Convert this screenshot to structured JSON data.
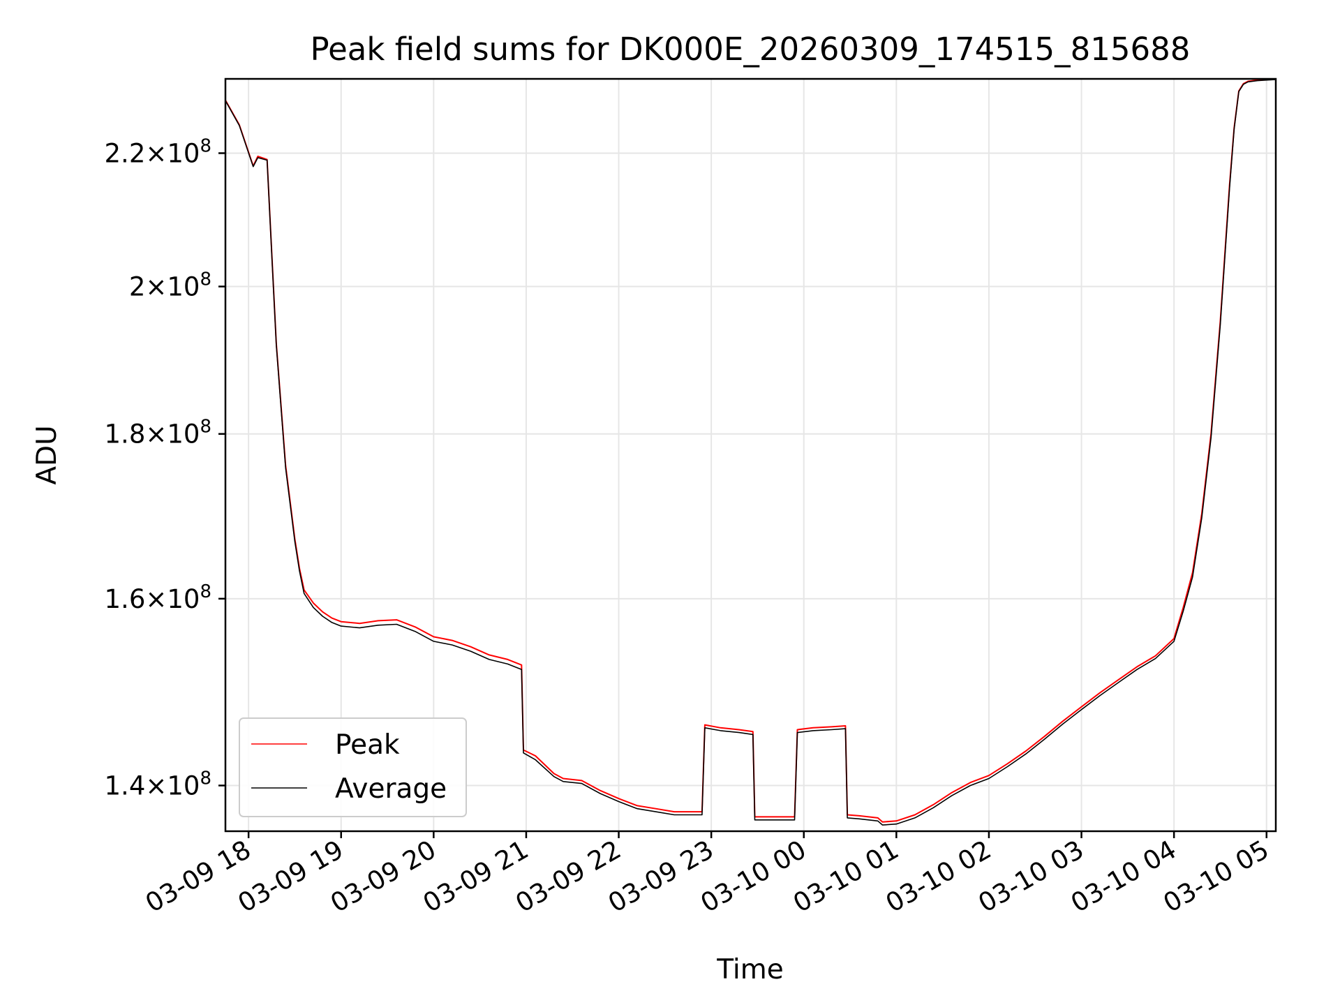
{
  "chart_data": {
    "type": "line",
    "title": "Peak field sums for DK000E_20260309_174515_815688",
    "xlabel": "Time",
    "ylabel": "ADU",
    "yscale": "log",
    "xlim": [
      17.75,
      29.1
    ],
    "ylim": [
      135500000,
      232000000
    ],
    "grid": true,
    "legend_position": "lower-left",
    "x_ticks": [
      {
        "value": 18,
        "label": "03-09 18"
      },
      {
        "value": 19,
        "label": "03-09 19"
      },
      {
        "value": 20,
        "label": "03-09 20"
      },
      {
        "value": 21,
        "label": "03-09 21"
      },
      {
        "value": 22,
        "label": "03-09 22"
      },
      {
        "value": 23,
        "label": "03-09 23"
      },
      {
        "value": 24,
        "label": "03-10 00"
      },
      {
        "value": 25,
        "label": "03-10 01"
      },
      {
        "value": 26,
        "label": "03-10 02"
      },
      {
        "value": 27,
        "label": "03-10 03"
      },
      {
        "value": 28,
        "label": "03-10 04"
      },
      {
        "value": 29,
        "label": "03-10 05"
      }
    ],
    "y_ticks": [
      {
        "value": 140000000,
        "mantissa": "1.4",
        "base": "10",
        "exp": "8"
      },
      {
        "value": 160000000,
        "mantissa": "1.6",
        "base": "10",
        "exp": "8"
      },
      {
        "value": 180000000,
        "mantissa": "1.8",
        "base": "10",
        "exp": "8"
      },
      {
        "value": 200000000,
        "mantissa": "2",
        "base": "10",
        "exp": "8"
      },
      {
        "value": 220000000,
        "mantissa": "2.2",
        "base": "10",
        "exp": "8"
      }
    ],
    "series": [
      {
        "name": "Peak",
        "color": "#ff0000",
        "x": [
          17.75,
          17.9,
          18.05,
          18.1,
          18.2,
          18.25,
          18.3,
          18.4,
          18.5,
          18.55,
          18.6,
          18.7,
          18.8,
          18.9,
          19.0,
          19.2,
          19.4,
          19.6,
          19.8,
          20.0,
          20.2,
          20.4,
          20.6,
          20.8,
          20.95,
          20.97,
          21.1,
          21.3,
          21.4,
          21.6,
          21.8,
          22.0,
          22.2,
          22.4,
          22.6,
          22.9,
          22.93,
          23.1,
          23.3,
          23.45,
          23.47,
          23.6,
          23.8,
          23.9,
          23.93,
          24.1,
          24.3,
          24.45,
          24.47,
          24.6,
          24.8,
          24.85,
          25.0,
          25.2,
          25.4,
          25.6,
          25.8,
          26.0,
          26.2,
          26.4,
          26.6,
          26.8,
          27.0,
          27.2,
          27.4,
          27.6,
          27.8,
          28.0,
          28.1,
          28.2,
          28.3,
          28.4,
          28.5,
          28.6,
          28.65,
          28.7,
          28.75,
          28.8,
          28.9,
          29.1
        ],
        "values": [
          228500000,
          224500000,
          218000000,
          219500000,
          219000000,
          205000000,
          192000000,
          176000000,
          167000000,
          163500000,
          161000000,
          159500000,
          158500000,
          157800000,
          157400000,
          157200000,
          157500000,
          157600000,
          156800000,
          155700000,
          155300000,
          154600000,
          153700000,
          153200000,
          152600000,
          143600000,
          143000000,
          141200000,
          140700000,
          140500000,
          139500000,
          138700000,
          138000000,
          137700000,
          137400000,
          137400000,
          146200000,
          145900000,
          145700000,
          145500000,
          136900000,
          136900000,
          136900000,
          136900000,
          145700000,
          145900000,
          146000000,
          146100000,
          137100000,
          137000000,
          136800000,
          136400000,
          136500000,
          137100000,
          138100000,
          139300000,
          140300000,
          141000000,
          142200000,
          143500000,
          145000000,
          146600000,
          148100000,
          149600000,
          151000000,
          152400000,
          153600000,
          155500000,
          159000000,
          163000000,
          170000000,
          180000000,
          195000000,
          215000000,
          224000000,
          230000000,
          231200000,
          231600000,
          231800000,
          232000000
        ]
      },
      {
        "name": "Average",
        "color": "#000000",
        "x": [
          17.75,
          17.9,
          18.05,
          18.1,
          18.2,
          18.25,
          18.3,
          18.4,
          18.5,
          18.55,
          18.6,
          18.7,
          18.8,
          18.9,
          19.0,
          19.2,
          19.4,
          19.6,
          19.8,
          20.0,
          20.2,
          20.4,
          20.6,
          20.8,
          20.95,
          20.97,
          21.1,
          21.3,
          21.4,
          21.6,
          21.8,
          22.0,
          22.2,
          22.4,
          22.6,
          22.9,
          22.93,
          23.1,
          23.3,
          23.45,
          23.47,
          23.6,
          23.8,
          23.9,
          23.93,
          24.1,
          24.3,
          24.45,
          24.47,
          24.6,
          24.8,
          24.85,
          25.0,
          25.2,
          25.4,
          25.6,
          25.8,
          26.0,
          26.2,
          26.4,
          26.6,
          26.8,
          27.0,
          27.2,
          27.4,
          27.6,
          27.8,
          28.0,
          28.1,
          28.2,
          28.3,
          28.4,
          28.5,
          28.6,
          28.65,
          28.7,
          28.75,
          28.8,
          28.9,
          29.1
        ],
        "values": [
          228400000,
          224400000,
          217900000,
          219300000,
          218900000,
          204800000,
          191800000,
          175700000,
          166700000,
          163200000,
          160600000,
          159000000,
          158000000,
          157300000,
          156900000,
          156700000,
          157000000,
          157100000,
          156300000,
          155200000,
          154800000,
          154100000,
          153200000,
          152700000,
          152100000,
          143300000,
          142600000,
          140900000,
          140400000,
          140200000,
          139200000,
          138400000,
          137700000,
          137400000,
          137100000,
          137100000,
          145900000,
          145600000,
          145400000,
          145200000,
          136600000,
          136600000,
          136600000,
          136600000,
          145400000,
          145600000,
          145700000,
          145800000,
          136800000,
          136700000,
          136500000,
          136100000,
          136200000,
          136800000,
          137800000,
          139000000,
          140000000,
          140700000,
          141900000,
          143200000,
          144700000,
          146300000,
          147800000,
          149300000,
          150700000,
          152100000,
          153300000,
          155200000,
          158600000,
          162500000,
          169500000,
          179500000,
          194500000,
          214500000,
          223800000,
          229900000,
          231100000,
          231500000,
          231700000,
          231900000
        ]
      }
    ]
  }
}
